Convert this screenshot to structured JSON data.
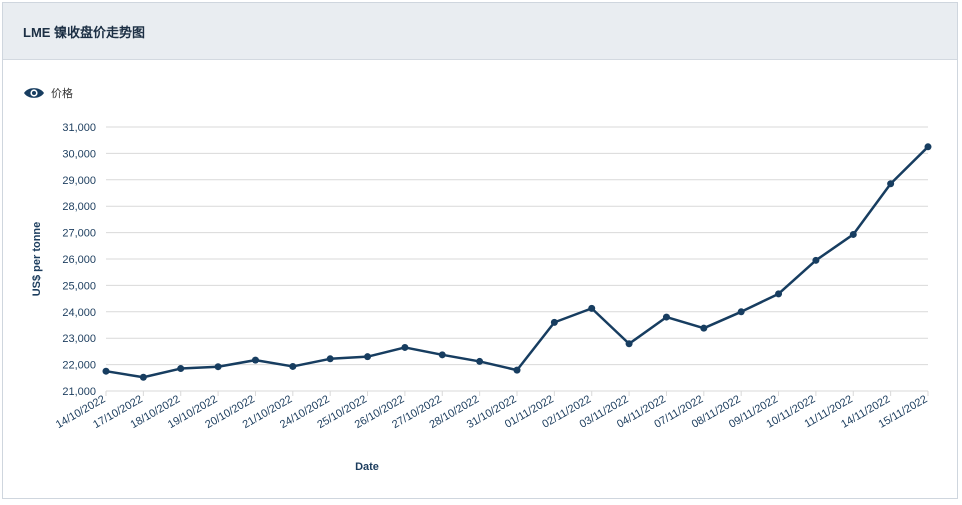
{
  "header": {
    "title": "LME 镍收盘价走势图"
  },
  "legend": {
    "icon": "eye-icon",
    "label": "价格"
  },
  "colors": {
    "line": "#173d60",
    "grid": "#d9d9d9",
    "text": "#1c3d5e",
    "header_bg": "#e9edf1"
  },
  "chart_data": {
    "type": "line",
    "title": "",
    "xlabel": "Date",
    "ylabel": "US$ per tonne",
    "ylim": [
      21000,
      31000
    ],
    "yticks": [
      21000,
      22000,
      23000,
      24000,
      25000,
      26000,
      27000,
      28000,
      29000,
      30000,
      31000
    ],
    "ytick_labels": [
      "21,000",
      "22,000",
      "23,000",
      "24,000",
      "25,000",
      "26,000",
      "27,000",
      "28,000",
      "29,000",
      "30,000",
      "31,000"
    ],
    "grid": true,
    "legend_position": "top-left",
    "categories": [
      "14/10/2022",
      "17/10/2022",
      "18/10/2022",
      "19/10/2022",
      "20/10/2022",
      "21/10/2022",
      "24/10/2022",
      "25/10/2022",
      "26/10/2022",
      "27/10/2022",
      "28/10/2022",
      "31/10/2022",
      "01/11/2022",
      "02/11/2022",
      "03/11/2022",
      "04/11/2022",
      "07/11/2022",
      "08/11/2022",
      "09/11/2022",
      "10/11/2022",
      "11/11/2022",
      "14/11/2022",
      "15/11/2022"
    ],
    "series": [
      {
        "name": "价格",
        "values": [
          21750,
          21520,
          21850,
          21920,
          22170,
          21930,
          22220,
          22300,
          22650,
          22370,
          22120,
          21790,
          23600,
          24130,
          22790,
          23800,
          23380,
          24000,
          24680,
          25950,
          26930,
          28850,
          30250
        ]
      }
    ]
  }
}
